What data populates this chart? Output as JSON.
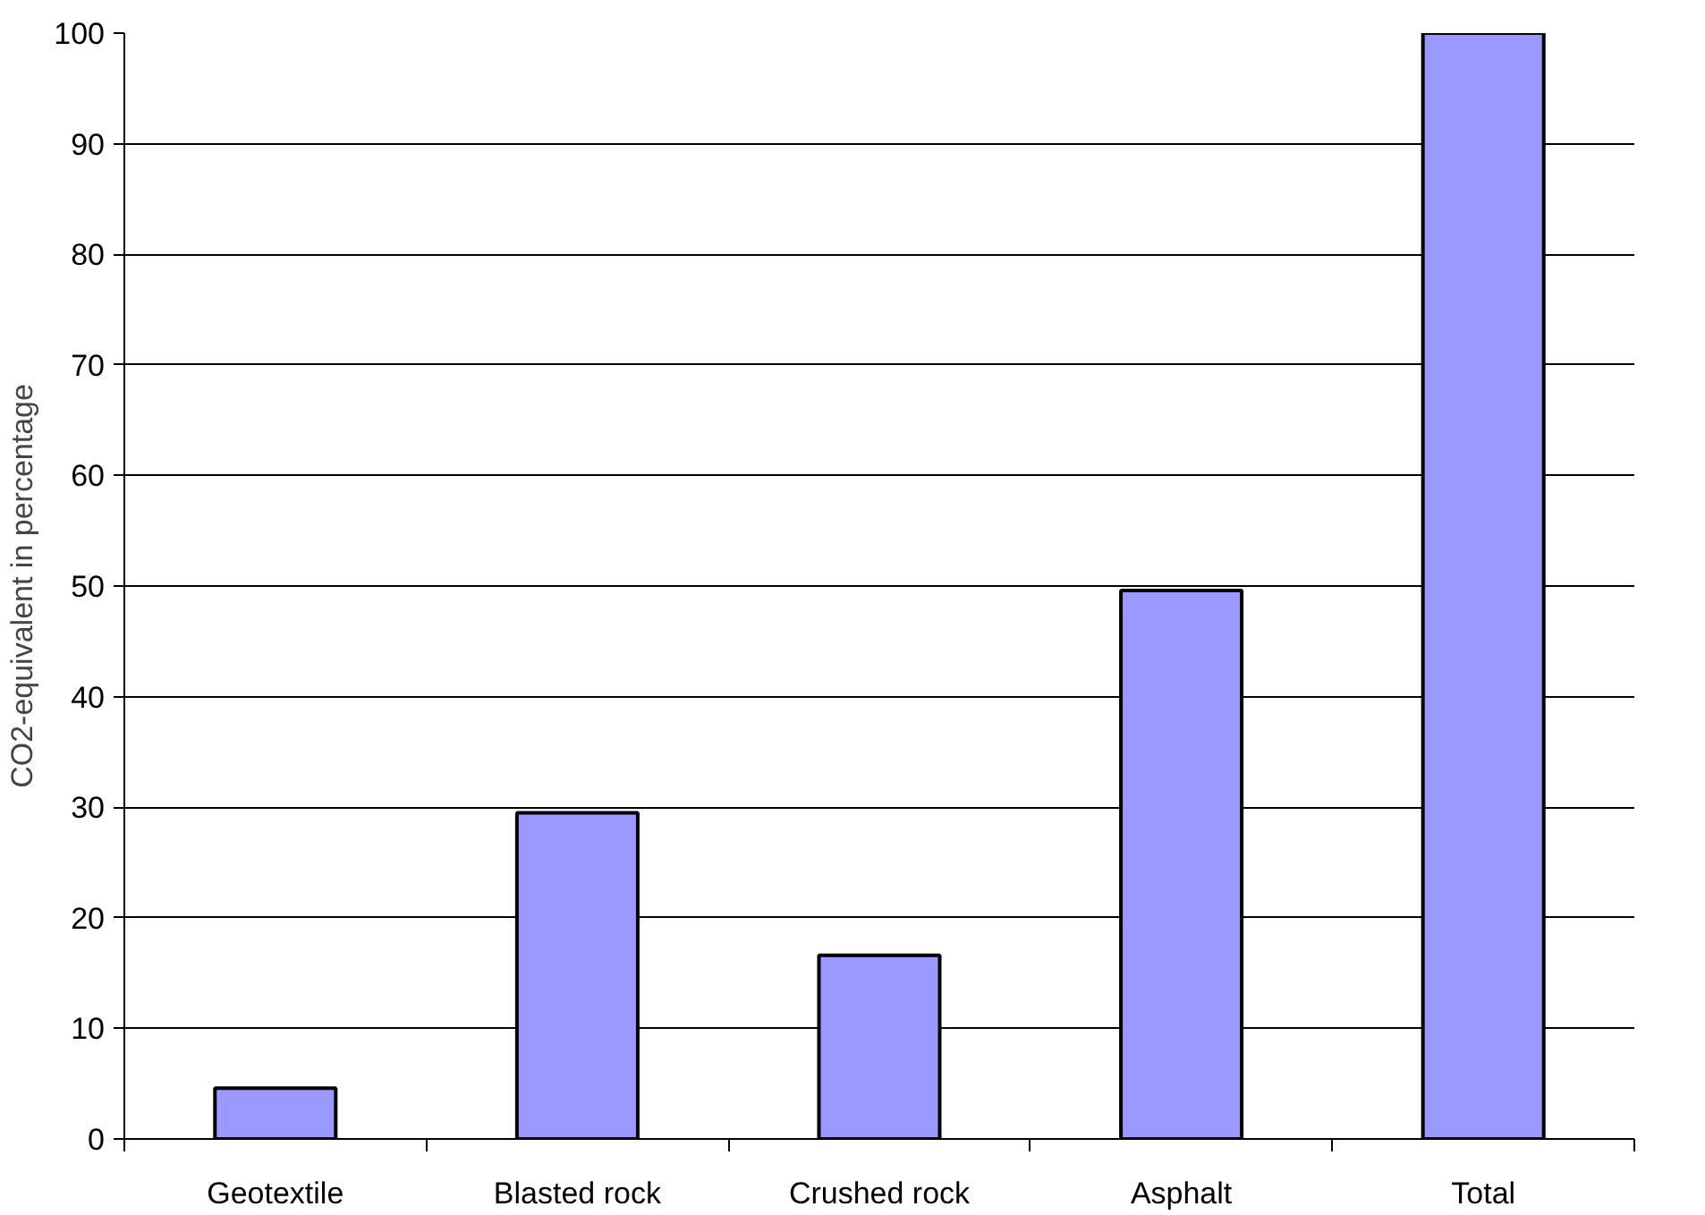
{
  "chart_data": {
    "type": "bar",
    "ylabel": "CO2-equivalent in percentage",
    "categories": [
      "Geotextile",
      "Blasted rock",
      "Crushed rock",
      "Asphalt",
      "Total"
    ],
    "values": [
      4.6,
      29.5,
      16.6,
      49.6,
      100
    ],
    "color": "#9999ff",
    "ylim": [
      0,
      100
    ],
    "yticks": [
      0,
      10,
      20,
      30,
      40,
      50,
      60,
      70,
      80,
      90,
      100
    ],
    "grid": "y"
  }
}
